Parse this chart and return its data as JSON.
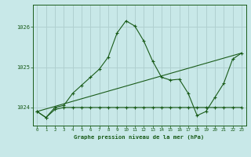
{
  "background_color": "#c8e8e8",
  "grid_color": "#b0d0d0",
  "line_color": "#1a5c1a",
  "x_ticks": [
    0,
    1,
    2,
    3,
    4,
    5,
    6,
    7,
    8,
    9,
    10,
    11,
    12,
    13,
    14,
    15,
    16,
    17,
    18,
    19,
    20,
    21,
    22,
    23
  ],
  "y_ticks": [
    1024,
    1025,
    1026
  ],
  "ylim": [
    1023.55,
    1026.55
  ],
  "xlim": [
    -0.5,
    23.5
  ],
  "xlabel": "Graphe pression niveau de la mer (hPa)",
  "series_main": {
    "x": [
      0,
      1,
      2,
      3,
      4,
      5,
      6,
      7,
      8,
      9,
      10,
      11,
      12,
      13,
      14,
      15,
      16,
      17,
      18,
      19,
      20,
      21,
      22,
      23
    ],
    "y": [
      1023.9,
      1023.75,
      1024.0,
      1024.05,
      1024.35,
      1024.55,
      1024.75,
      1024.95,
      1025.25,
      1025.85,
      1026.15,
      1026.02,
      1025.65,
      1025.15,
      1024.75,
      1024.68,
      1024.7,
      1024.35,
      1023.8,
      1023.9,
      1024.25,
      1024.6,
      1025.2,
      1025.35
    ]
  },
  "series_flat": {
    "x": [
      0,
      1,
      2,
      3,
      4,
      5,
      6,
      7,
      8,
      9,
      10,
      11,
      12,
      13,
      14,
      15,
      16,
      17,
      18,
      19,
      20,
      21,
      22,
      23
    ],
    "y": [
      1023.9,
      1023.75,
      1023.95,
      1024.0,
      1024.0,
      1024.0,
      1024.0,
      1024.0,
      1024.0,
      1024.0,
      1024.0,
      1024.0,
      1024.0,
      1024.0,
      1024.0,
      1024.0,
      1024.0,
      1024.0,
      1024.0,
      1024.0,
      1024.0,
      1024.0,
      1024.0,
      1024.0
    ]
  },
  "series_trend": {
    "x": [
      0,
      23
    ],
    "y": [
      1023.9,
      1025.35
    ]
  }
}
